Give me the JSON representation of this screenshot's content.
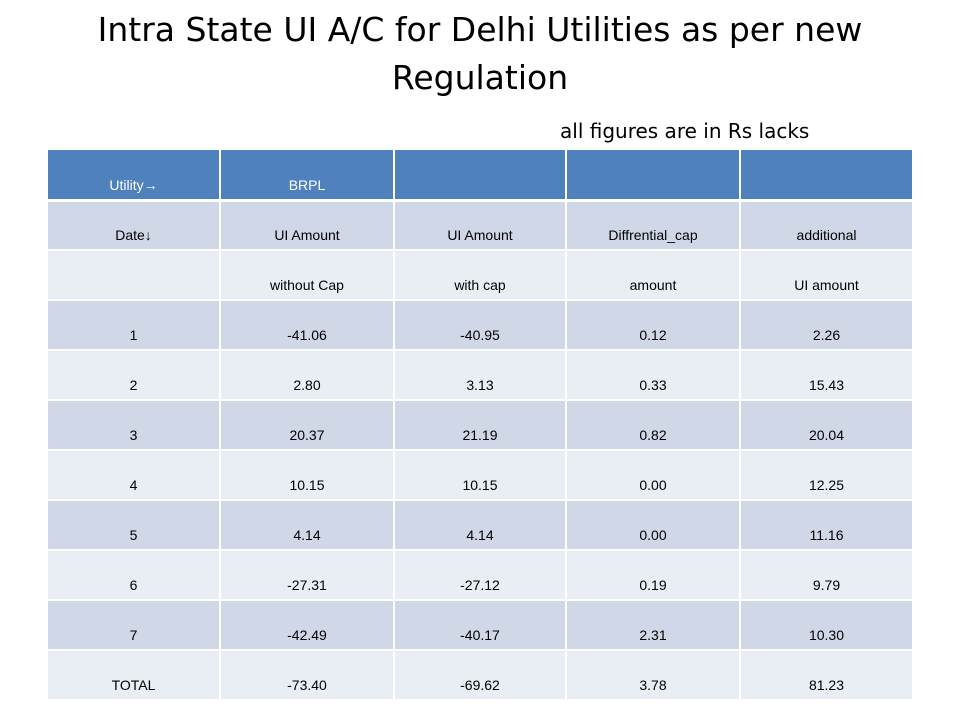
{
  "slide": {
    "title": "Intra State UI A/C for Delhi Utilities as per new Regulation",
    "subtitle": "all figures are in Rs lacks"
  },
  "table": {
    "header": [
      "Utility→",
      "BRPL",
      "",
      "",
      ""
    ],
    "subheader1": [
      "Date↓",
      "UI Amount",
      "UI Amount",
      "Diffrential_cap",
      "additional"
    ],
    "subheader2": [
      "",
      "without Cap",
      "with cap",
      "amount",
      "UI amount"
    ],
    "rows": [
      [
        "1",
        "-41.06",
        "-40.95",
        "0.12",
        "2.26"
      ],
      [
        "2",
        "2.80",
        "3.13",
        "0.33",
        "15.43"
      ],
      [
        "3",
        "20.37",
        "21.19",
        "0.82",
        "20.04"
      ],
      [
        "4",
        "10.15",
        "10.15",
        "0.00",
        "12.25"
      ],
      [
        "5",
        "4.14",
        "4.14",
        "0.00",
        "11.16"
      ],
      [
        "6",
        "-27.31",
        "-27.12",
        "0.19",
        "9.79"
      ],
      [
        "7",
        "-42.49",
        "-40.17",
        "2.31",
        "10.30"
      ],
      [
        "TOTAL",
        "-73.40",
        "-69.62",
        "3.78",
        "81.23"
      ]
    ]
  }
}
